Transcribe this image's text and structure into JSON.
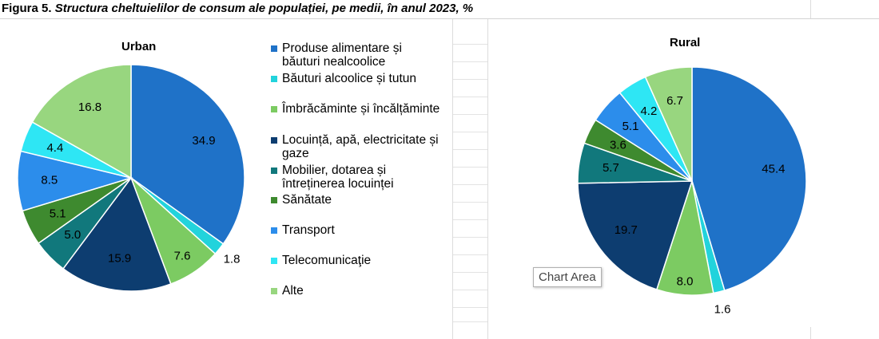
{
  "figure": {
    "label": "Figura 5.",
    "title": "Structura cheltuielilor de consum ale populației, pe medii, în anul 2023, %"
  },
  "legend": {
    "placement": "center",
    "items": [
      {
        "label": "Produse alimentare și băuturi nealcoolice",
        "color": "#1F72C8"
      },
      {
        "label": "Băuturi alcoolice și tutun",
        "color": "#22D3DC"
      },
      {
        "label": "Îmbrăcăminte și încălțăminte",
        "color": "#7CCB62"
      },
      {
        "label": "Locuință, apă, electricitate și gaze",
        "color": "#0D3D70"
      },
      {
        "label": "Mobilier, dotarea și întreținerea locuinței",
        "color": "#11787C"
      },
      {
        "label": "Sănătate",
        "color": "#3E8A2F"
      },
      {
        "label": "Transport",
        "color": "#2C8DEB"
      },
      {
        "label": "Telecomunicaţie",
        "color": "#2EE6F4"
      },
      {
        "label": "Alte",
        "color": "#98D67F"
      }
    ]
  },
  "chart_data": [
    {
      "type": "pie",
      "title": "Urban",
      "categories": [
        "Produse alimentare și băuturi nealcoolice",
        "Băuturi alcoolice și tutun",
        "Îmbrăcăminte și încălțăminte",
        "Locuință, apă, electricitate și gaze",
        "Mobilier, dotarea și întreținerea locuinței",
        "Sănătate",
        "Transport",
        "Telecomunicaţie",
        "Alte"
      ],
      "values": [
        34.9,
        1.8,
        7.6,
        15.9,
        5.0,
        5.1,
        8.5,
        4.4,
        16.8
      ],
      "labels": [
        "34.9",
        "1.8",
        "7.6",
        "15.9",
        "5.0",
        "5.1",
        "8.5",
        "4.4",
        "16.8"
      ],
      "colors": [
        "#1F72C8",
        "#22D3DC",
        "#7CCB62",
        "#0D3D70",
        "#11787C",
        "#3E8A2F",
        "#2C8DEB",
        "#2EE6F4",
        "#98D67F"
      ]
    },
    {
      "type": "pie",
      "title": "Rural",
      "categories": [
        "Produse alimentare și băuturi nealcoolice",
        "Băuturi alcoolice și tutun",
        "Îmbrăcăminte și încălțăminte",
        "Locuință, apă, electricitate și gaze",
        "Mobilier, dotarea și întreținerea locuinței",
        "Sănătate",
        "Transport",
        "Telecomunicaţie",
        "Alte"
      ],
      "values": [
        45.4,
        1.6,
        8.0,
        19.7,
        5.7,
        3.6,
        5.1,
        4.2,
        6.7
      ],
      "labels": [
        "45.4",
        "1.6",
        "8.0",
        "19.7",
        "5.7",
        "3.6",
        "5.1",
        "4.2",
        "6.7"
      ],
      "colors": [
        "#1F72C8",
        "#22D3DC",
        "#7CCB62",
        "#0D3D70",
        "#11787C",
        "#3E8A2F",
        "#2C8DEB",
        "#2EE6F4",
        "#98D67F"
      ]
    }
  ],
  "tooltip": {
    "text": "Chart Area"
  }
}
